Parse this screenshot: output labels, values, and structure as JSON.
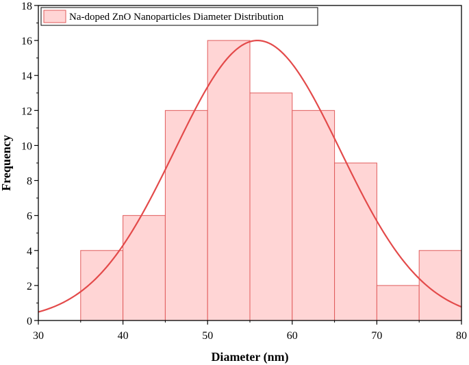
{
  "chart_data": {
    "type": "bar",
    "subtype": "histogram-with-normal-fit",
    "xlabel": "Diameter (nm)",
    "ylabel": "Frequency",
    "xlim": [
      30,
      80
    ],
    "ylim": [
      0,
      18
    ],
    "x_ticks": [
      30,
      40,
      50,
      60,
      70,
      80
    ],
    "y_ticks": [
      0,
      2,
      4,
      6,
      8,
      10,
      12,
      14,
      16,
      18
    ],
    "grid": false,
    "legend_position": "top-left",
    "series": [
      {
        "name": "Na-doped ZnO Nanoparticles Diameter Distribution",
        "bins": [
          {
            "start": 35,
            "end": 40,
            "value": 4
          },
          {
            "start": 40,
            "end": 45,
            "value": 6
          },
          {
            "start": 45,
            "end": 50,
            "value": 12
          },
          {
            "start": 50,
            "end": 55,
            "value": 16
          },
          {
            "start": 55,
            "end": 60,
            "value": 13
          },
          {
            "start": 60,
            "end": 65,
            "value": 12
          },
          {
            "start": 65,
            "end": 70,
            "value": 9
          },
          {
            "start": 70,
            "end": 75,
            "value": 2
          },
          {
            "start": 75,
            "end": 80,
            "value": 4
          }
        ],
        "fill_color": "#ffd5d5",
        "edge_color": "#e05a5a"
      }
    ],
    "fit_curve": {
      "type": "normal",
      "mean": 55.9,
      "sigma": 9.8,
      "peak": 16,
      "color": "#e34a4a"
    }
  }
}
